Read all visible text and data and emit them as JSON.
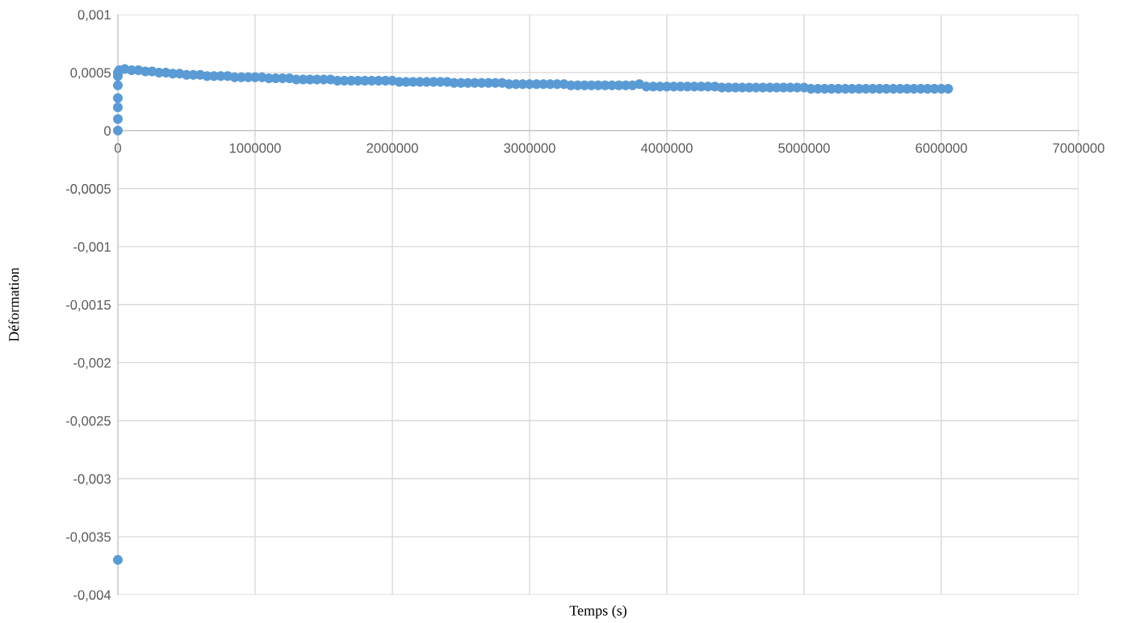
{
  "chart_data": {
    "type": "scatter",
    "xlabel": "Temps (s)",
    "ylabel": "Déformation",
    "xlim": [
      0,
      7000000
    ],
    "xticks": [
      0,
      1000000,
      2000000,
      3000000,
      4000000,
      5000000,
      6000000,
      7000000
    ],
    "ylim": [
      -0.004,
      0.001
    ],
    "yticks": [
      {
        "value": 0.001,
        "label": "0,001"
      },
      {
        "value": 0.0005,
        "label": "0,0005"
      },
      {
        "value": 0,
        "label": "0"
      },
      {
        "value": -0.0005,
        "label": "-0,0005"
      },
      {
        "value": -0.001,
        "label": "-0,001"
      },
      {
        "value": -0.0015,
        "label": "-0,0015"
      },
      {
        "value": -0.002,
        "label": "-0,002"
      },
      {
        "value": -0.0025,
        "label": "-0,0025"
      },
      {
        "value": -0.003,
        "label": "-0,003"
      },
      {
        "value": -0.0035,
        "label": "-0,0035"
      },
      {
        "value": -0.004,
        "label": "-0,004"
      }
    ],
    "grid": true,
    "marker": "circle",
    "series": [
      {
        "color": "#5b9bd5",
        "x": [
          0,
          0,
          0,
          0,
          0,
          0,
          0,
          0,
          10000,
          50000,
          100000,
          150000,
          200000,
          250000,
          300000,
          350000,
          400000,
          450000,
          500000,
          550000,
          600000,
          650000,
          700000,
          750000,
          800000,
          850000,
          900000,
          950000,
          1000000,
          1050000,
          1100000,
          1150000,
          1200000,
          1250000,
          1300000,
          1350000,
          1400000,
          1450000,
          1500000,
          1550000,
          1600000,
          1650000,
          1700000,
          1750000,
          1800000,
          1850000,
          1900000,
          1950000,
          2000000,
          2050000,
          2100000,
          2150000,
          2200000,
          2250000,
          2300000,
          2350000,
          2400000,
          2450000,
          2500000,
          2550000,
          2600000,
          2650000,
          2700000,
          2750000,
          2800000,
          2850000,
          2900000,
          2950000,
          3000000,
          3050000,
          3100000,
          3150000,
          3200000,
          3250000,
          3300000,
          3350000,
          3400000,
          3450000,
          3500000,
          3550000,
          3600000,
          3650000,
          3700000,
          3750000,
          3800000,
          3850000,
          3900000,
          3950000,
          4000000,
          4050000,
          4100000,
          4150000,
          4200000,
          4250000,
          4300000,
          4350000,
          4400000,
          4450000,
          4500000,
          4550000,
          4600000,
          4650000,
          4700000,
          4750000,
          4800000,
          4850000,
          4900000,
          4950000,
          5000000,
          5050000,
          5100000,
          5150000,
          5200000,
          5250000,
          5300000,
          5350000,
          5400000,
          5450000,
          5500000,
          5550000,
          5600000,
          5650000,
          5700000,
          5750000,
          5800000,
          5850000,
          5900000,
          5950000,
          6000000,
          6050000
        ],
        "values": [
          -0.0037,
          0,
          0.0001,
          0.0002,
          0.00028,
          0.00039,
          0.00047,
          0.0005,
          0.00052,
          0.00053,
          0.00052,
          0.00052,
          0.00051,
          0.00051,
          0.0005,
          0.0005,
          0.00049,
          0.00049,
          0.00048,
          0.00048,
          0.00048,
          0.00047,
          0.00047,
          0.00047,
          0.00047,
          0.00046,
          0.00046,
          0.00046,
          0.00046,
          0.00046,
          0.00045,
          0.00045,
          0.00045,
          0.00045,
          0.00044,
          0.00044,
          0.00044,
          0.00044,
          0.00044,
          0.00044,
          0.00043,
          0.00043,
          0.00043,
          0.00043,
          0.00043,
          0.00043,
          0.00043,
          0.00043,
          0.00043,
          0.00042,
          0.00042,
          0.00042,
          0.00042,
          0.00042,
          0.00042,
          0.00042,
          0.00042,
          0.00041,
          0.00041,
          0.00041,
          0.00041,
          0.00041,
          0.00041,
          0.00041,
          0.00041,
          0.0004,
          0.0004,
          0.0004,
          0.0004,
          0.0004,
          0.0004,
          0.0004,
          0.0004,
          0.0004,
          0.00039,
          0.00039,
          0.00039,
          0.00039,
          0.00039,
          0.00039,
          0.00039,
          0.00039,
          0.00039,
          0.00039,
          0.0004,
          0.00038,
          0.00038,
          0.00038,
          0.00038,
          0.00038,
          0.00038,
          0.00038,
          0.00038,
          0.00038,
          0.00038,
          0.00038,
          0.00037,
          0.00037,
          0.00037,
          0.00037,
          0.00037,
          0.00037,
          0.00037,
          0.00037,
          0.00037,
          0.00037,
          0.00037,
          0.00037,
          0.00037,
          0.00036,
          0.00036,
          0.00036,
          0.00036,
          0.00036,
          0.00036,
          0.00036,
          0.00036,
          0.00036,
          0.00036,
          0.00036,
          0.00036,
          0.00036,
          0.00036,
          0.00036,
          0.00036,
          0.00036,
          0.00036,
          0.00036,
          0.00036,
          0.00036
        ]
      }
    ]
  }
}
